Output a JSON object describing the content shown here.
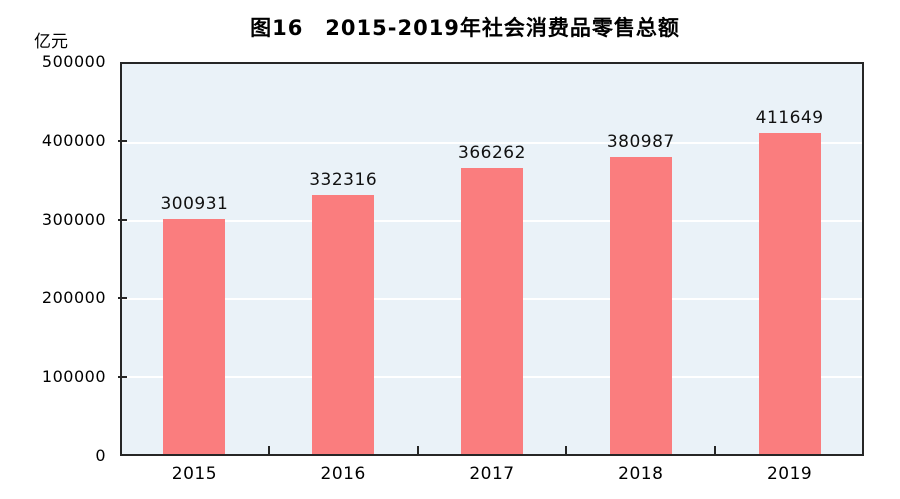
{
  "chart_data": {
    "type": "bar",
    "title": "图16　2015-2019年社会消费品零售总额",
    "unit": "亿元",
    "categories": [
      "2015",
      "2016",
      "2017",
      "2018",
      "2019"
    ],
    "values": [
      300931,
      332316,
      366262,
      380987,
      411649
    ],
    "data_labels": [
      "300931",
      "332316",
      "366262",
      "380987",
      "411649"
    ],
    "ylim": [
      0,
      500000
    ],
    "yticks": [
      0,
      100000,
      200000,
      300000,
      400000,
      500000
    ],
    "xlabel": "",
    "ylabel": "亿元",
    "grid": true,
    "legend": "none",
    "colors": {
      "bar": "#fa7d7e",
      "plot_background": "#eaf2f8",
      "gridline": "#ffffff",
      "axis": "#262626",
      "text": "#000000"
    }
  }
}
